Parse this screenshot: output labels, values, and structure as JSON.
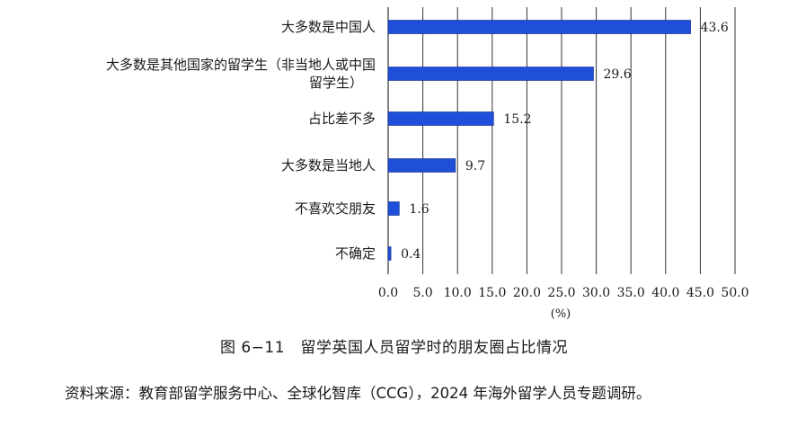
{
  "chart_data": {
    "type": "bar",
    "orientation": "horizontal",
    "categories": [
      "大多数是中国人",
      "大多数是其他国家的留学生（非当地人或中国留学生）",
      "占比差不多",
      "大多数是当地人",
      "不喜欢交朋友",
      "不确定"
    ],
    "category_lines": [
      [
        "大多数是中国人"
      ],
      [
        "大多数是其他国家的留学生（非当地人或中国",
        "留学生）"
      ],
      [
        "占比差不多"
      ],
      [
        "大多数是当地人"
      ],
      [
        "不喜欢交朋友"
      ],
      [
        "不确定"
      ]
    ],
    "values": [
      43.6,
      29.6,
      15.2,
      9.7,
      1.6,
      0.4
    ],
    "value_labels": [
      "43.6",
      "29.6",
      "15.2",
      "9.7",
      "1.6",
      "0.4"
    ],
    "xticks": [
      "0.0",
      "5.0",
      "10.0",
      "15.0",
      "20.0",
      "25.0",
      "30.0",
      "35.0",
      "40.0",
      "45.0",
      "50.0"
    ],
    "xlim": [
      0,
      50
    ],
    "xlabel": "(%)",
    "grid": "vertical",
    "bar_color": "#1f4fd8"
  },
  "caption": "图 6−11　留学英国人员留学时的朋友圈占比情况",
  "source": "资料来源：教育部留学服务中心、全球化智库（CCG），2024 年海外留学人员专题调研。"
}
